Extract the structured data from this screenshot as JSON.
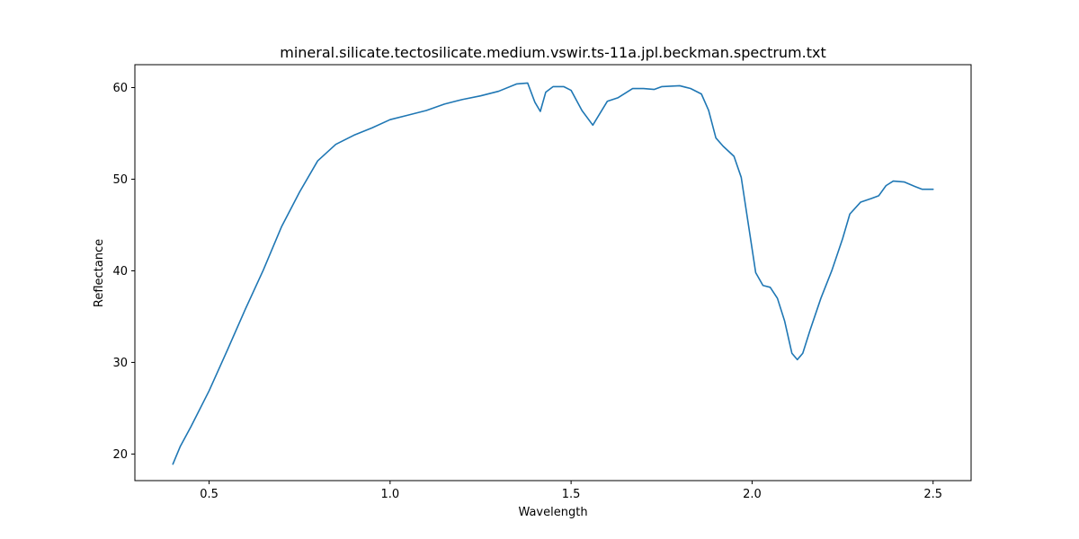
{
  "chart_data": {
    "type": "line",
    "title": "mineral.silicate.tectosilicate.medium.vswir.ts-11a.jpl.beckman.spectrum.txt",
    "xlabel": "Wavelength",
    "ylabel": "Reflectance",
    "xlim": [
      0.295,
      2.605
    ],
    "ylim": [
      17.1,
      62.5
    ],
    "xticks": [
      0.5,
      1.0,
      1.5,
      2.0,
      2.5
    ],
    "xtick_labels": [
      "0.5",
      "1.0",
      "1.5",
      "2.0",
      "2.5"
    ],
    "yticks": [
      20,
      30,
      40,
      50,
      60
    ],
    "ytick_labels": [
      "20",
      "30",
      "40",
      "50",
      "60"
    ],
    "grid": false,
    "series": [
      {
        "color": "#1f77b4",
        "points": [
          [
            0.4,
            18.9
          ],
          [
            0.42,
            20.8
          ],
          [
            0.45,
            23.0
          ],
          [
            0.5,
            26.9
          ],
          [
            0.55,
            31.3
          ],
          [
            0.6,
            35.8
          ],
          [
            0.65,
            40.1
          ],
          [
            0.7,
            44.8
          ],
          [
            0.75,
            48.6
          ],
          [
            0.8,
            52.0
          ],
          [
            0.85,
            53.8
          ],
          [
            0.9,
            54.8
          ],
          [
            0.95,
            55.6
          ],
          [
            1.0,
            56.5
          ],
          [
            1.05,
            57.0
          ],
          [
            1.1,
            57.5
          ],
          [
            1.15,
            58.2
          ],
          [
            1.2,
            58.7
          ],
          [
            1.25,
            59.1
          ],
          [
            1.3,
            59.6
          ],
          [
            1.35,
            60.4
          ],
          [
            1.38,
            60.5
          ],
          [
            1.4,
            58.4
          ],
          [
            1.415,
            57.4
          ],
          [
            1.43,
            59.5
          ],
          [
            1.45,
            60.1
          ],
          [
            1.48,
            60.1
          ],
          [
            1.5,
            59.7
          ],
          [
            1.53,
            57.5
          ],
          [
            1.56,
            55.9
          ],
          [
            1.58,
            57.2
          ],
          [
            1.6,
            58.5
          ],
          [
            1.63,
            58.9
          ],
          [
            1.67,
            59.9
          ],
          [
            1.7,
            59.9
          ],
          [
            1.73,
            59.8
          ],
          [
            1.75,
            60.1
          ],
          [
            1.8,
            60.2
          ],
          [
            1.83,
            59.9
          ],
          [
            1.86,
            59.3
          ],
          [
            1.88,
            57.5
          ],
          [
            1.9,
            54.5
          ],
          [
            1.92,
            53.6
          ],
          [
            1.95,
            52.5
          ],
          [
            1.97,
            50.2
          ],
          [
            1.99,
            45.0
          ],
          [
            2.01,
            39.8
          ],
          [
            2.03,
            38.4
          ],
          [
            2.05,
            38.2
          ],
          [
            2.07,
            37.0
          ],
          [
            2.09,
            34.5
          ],
          [
            2.11,
            31.0
          ],
          [
            2.125,
            30.3
          ],
          [
            2.14,
            31.0
          ],
          [
            2.16,
            33.5
          ],
          [
            2.19,
            37.0
          ],
          [
            2.22,
            40.0
          ],
          [
            2.25,
            43.5
          ],
          [
            2.27,
            46.2
          ],
          [
            2.3,
            47.5
          ],
          [
            2.33,
            47.9
          ],
          [
            2.35,
            48.2
          ],
          [
            2.37,
            49.3
          ],
          [
            2.39,
            49.8
          ],
          [
            2.42,
            49.7
          ],
          [
            2.45,
            49.2
          ],
          [
            2.47,
            48.9
          ],
          [
            2.5,
            48.9
          ]
        ]
      }
    ]
  }
}
